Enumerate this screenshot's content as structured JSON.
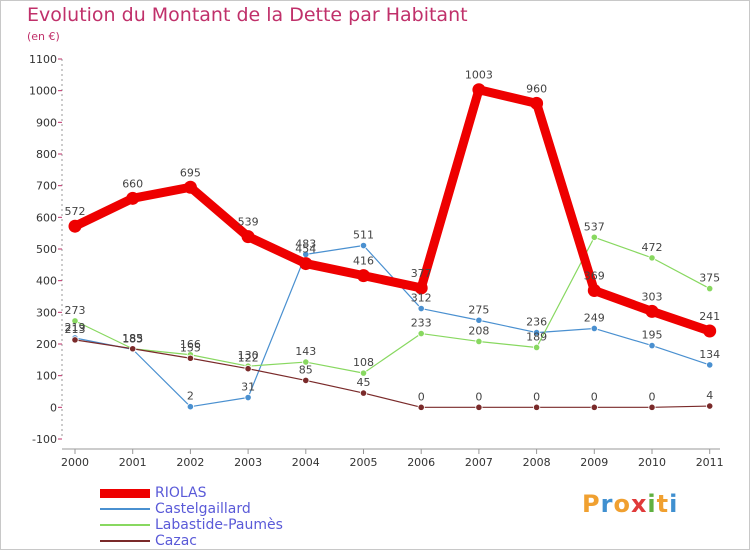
{
  "title": "Evolution du Montant de la Dette par Habitant",
  "subtitle": "(en €)",
  "logo": {
    "letters": [
      "P",
      "r",
      "o",
      "x",
      "i",
      "t",
      "i"
    ],
    "colors": [
      "#f0a030",
      "#4090d0",
      "#f0a030",
      "#e03a3a",
      "#60b040",
      "#f0a030",
      "#4090d0"
    ]
  },
  "chart_data": {
    "type": "line",
    "categories": [
      "2000",
      "2001",
      "2002",
      "2003",
      "2004",
      "2005",
      "2006",
      "2007",
      "2008",
      "2009",
      "2010",
      "2011"
    ],
    "y_ticks": [
      "-100",
      "0",
      "100",
      "200",
      "300",
      "400",
      "500",
      "600",
      "700",
      "800",
      "900",
      "1000",
      "1100"
    ],
    "ylim": [
      -100,
      1100
    ],
    "grid": false,
    "legend_position": "bottom-left",
    "series": [
      {
        "name": "RIOLAS",
        "color": "#ee0000",
        "width": 9,
        "values": [
          572,
          660,
          695,
          539,
          454,
          416,
          377,
          1003,
          960,
          369,
          303,
          241
        ]
      },
      {
        "name": "Castelgaillard",
        "color": "#4a90d0",
        "width": 1.2,
        "values": [
          219,
          183,
          2,
          31,
          483,
          511,
          312,
          275,
          236,
          249,
          195,
          134
        ]
      },
      {
        "name": "Labastide-Paumès",
        "color": "#88d860",
        "width": 1.2,
        "values": [
          273,
          185,
          166,
          130,
          143,
          108,
          233,
          208,
          189,
          537,
          472,
          375
        ]
      },
      {
        "name": "Cazac",
        "color": "#7a2a2a",
        "width": 1.2,
        "values": [
          213,
          185,
          155,
          122,
          85,
          45,
          0,
          0,
          0,
          0,
          0,
          4
        ]
      }
    ]
  }
}
